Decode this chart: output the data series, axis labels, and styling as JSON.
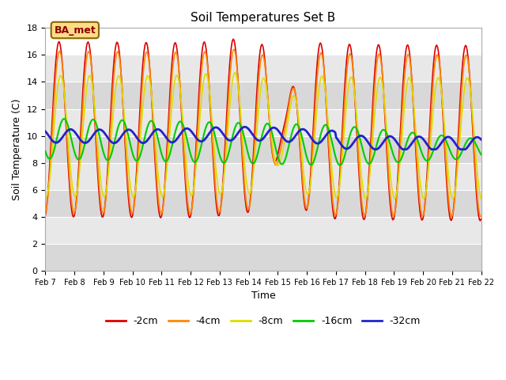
{
  "title": "Soil Temperatures Set B",
  "xlabel": "Time",
  "ylabel": "Soil Temperature (C)",
  "xlim": [
    0,
    15
  ],
  "ylim": [
    0,
    18
  ],
  "yticks": [
    0,
    2,
    4,
    6,
    8,
    10,
    12,
    14,
    16,
    18
  ],
  "xtick_labels": [
    "Feb 7",
    "Feb 8",
    "Feb 9",
    "Feb 10",
    "Feb 11",
    "Feb 12",
    "Feb 13",
    "Feb 14",
    "Feb 15",
    "Feb 16",
    "Feb 17",
    "Feb 18",
    "Feb 19",
    "Feb 20",
    "Feb 21",
    "Feb 22"
  ],
  "series_colors": [
    "#dd0000",
    "#ff8800",
    "#dddd00",
    "#00cc00",
    "#2222cc"
  ],
  "series_labels": [
    "-2cm",
    "-4cm",
    "-8cm",
    "-16cm",
    "-32cm"
  ],
  "series_linewidths": [
    1.2,
    1.2,
    1.2,
    1.5,
    2.0
  ],
  "annotation_text": "BA_met",
  "background_color": "#ffffff",
  "band_colors_even": "#d8d8d8",
  "band_colors_odd": "#ebebeb",
  "top_band_color": "#ffffff"
}
